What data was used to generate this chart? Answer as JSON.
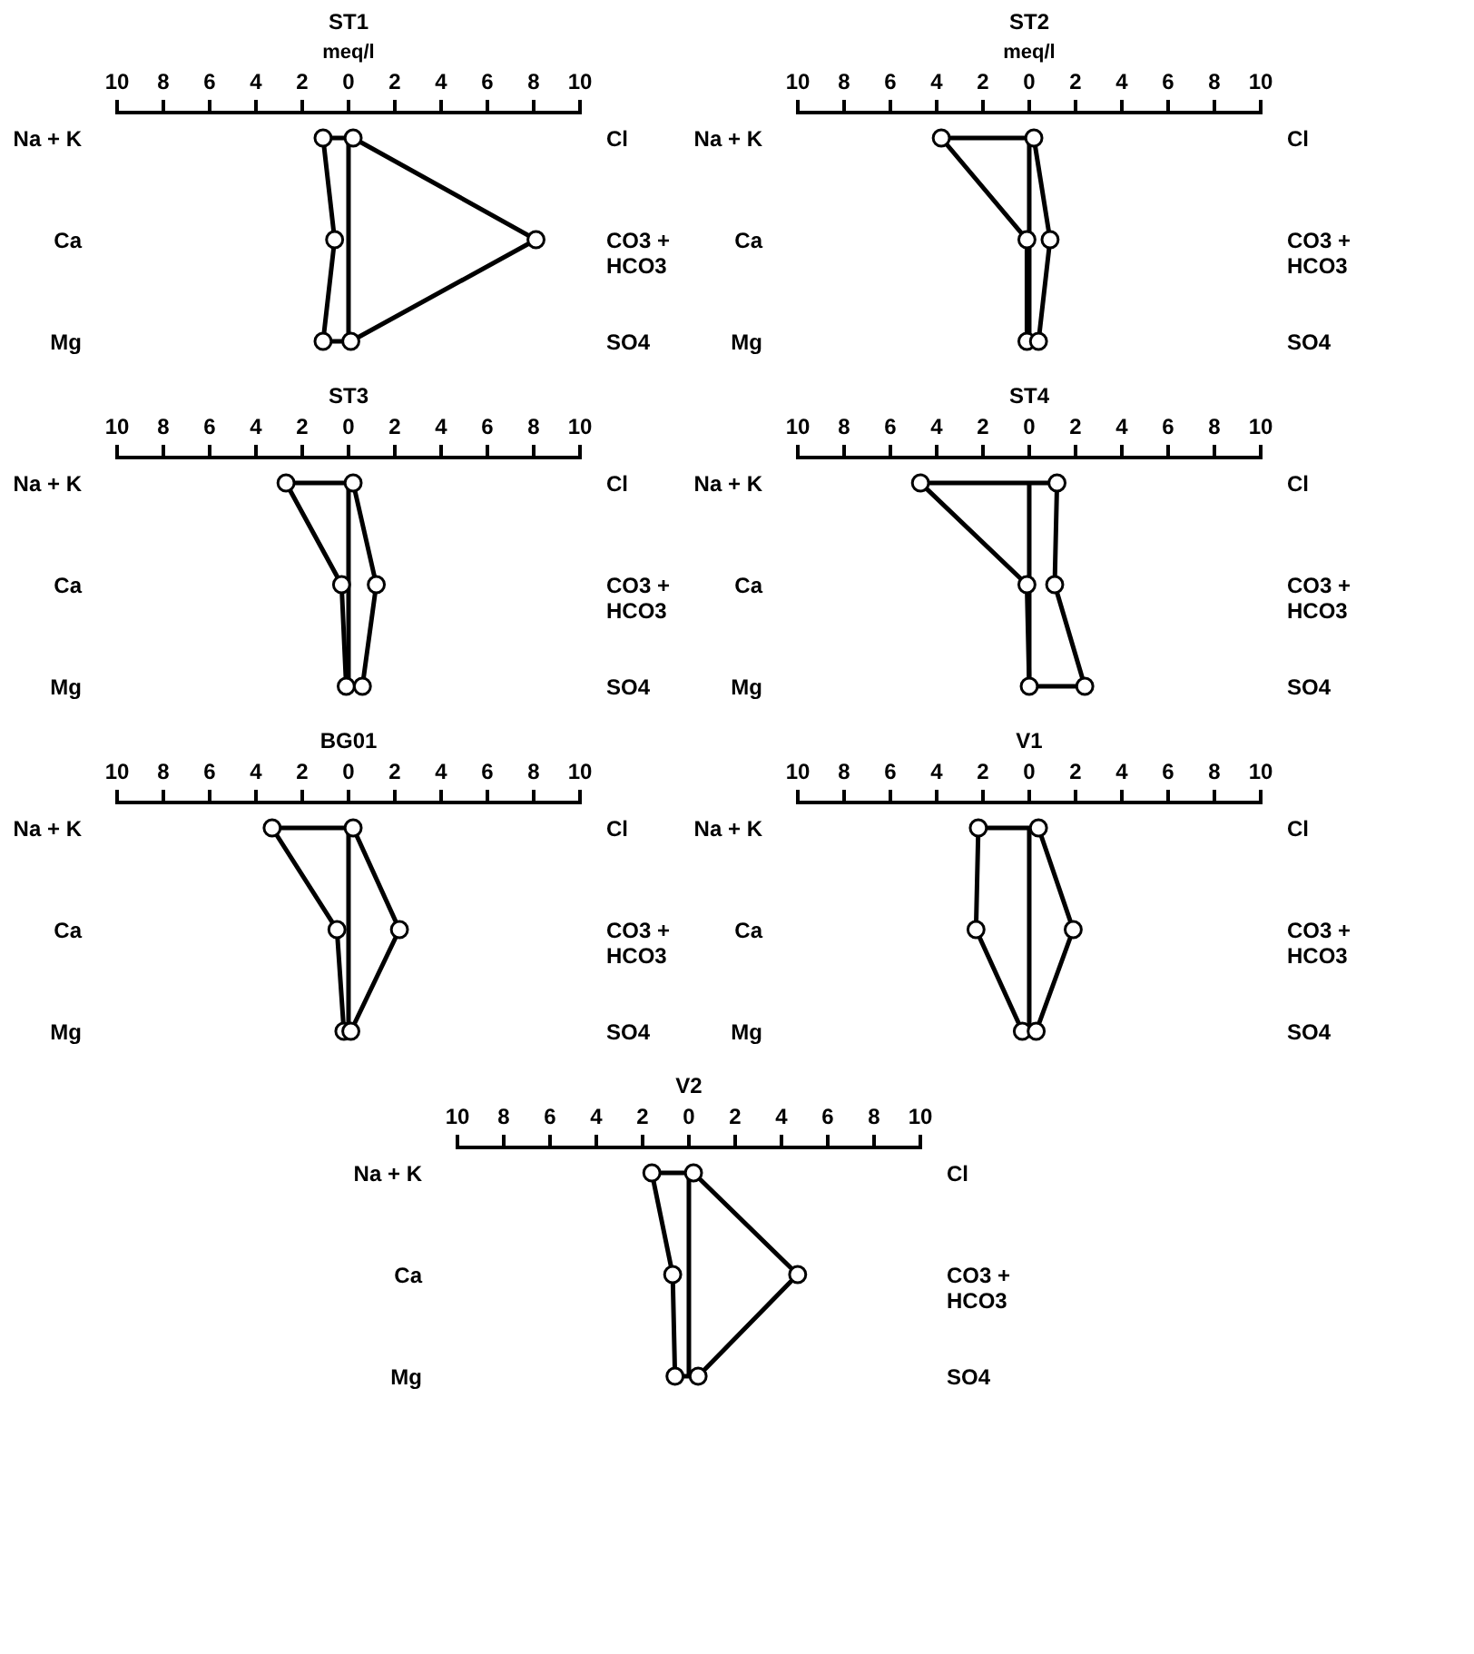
{
  "chart_data": [
    {
      "type": "line",
      "title": "ST1",
      "xlabel": "meq/l",
      "orientation": "horizontal",
      "grid": false,
      "marker": "circle",
      "line_style": "solid",
      "categories": [
        "Na + K",
        "Ca",
        "Mg"
      ],
      "y2_categories": [
        "Cl",
        "CO3 +\nHCO3",
        "SO4"
      ],
      "xlim": [
        -10,
        10
      ],
      "xticks": [
        {
          "value": -10,
          "label": "10"
        },
        {
          "value": -8,
          "label": "8"
        },
        {
          "value": -6,
          "label": "6"
        },
        {
          "value": -4,
          "label": "4"
        },
        {
          "value": -2,
          "label": "2"
        },
        0,
        2,
        4,
        6,
        8,
        10
      ],
      "ref_lines": [
        {
          "axis": "x",
          "value": 0
        }
      ],
      "series": [
        {
          "color": "#000000",
          "values": [
            -1.1,
            -0.6,
            -1.1
          ]
        },
        {
          "color": "#000000",
          "axis": "y2",
          "values": [
            0.2,
            8.1,
            0.1
          ]
        }
      ]
    },
    {
      "type": "line",
      "title": "ST2",
      "xlabel": "meq/l",
      "orientation": "horizontal",
      "grid": false,
      "marker": "circle",
      "line_style": "solid",
      "categories": [
        "Na + K",
        "Ca",
        "Mg"
      ],
      "y2_categories": [
        "Cl",
        "CO3 +\nHCO3",
        "SO4"
      ],
      "xlim": [
        -10,
        10
      ],
      "xticks": [
        {
          "value": -10,
          "label": "10"
        },
        {
          "value": -8,
          "label": "8"
        },
        {
          "value": -6,
          "label": "6"
        },
        {
          "value": -4,
          "label": "4"
        },
        {
          "value": -2,
          "label": "2"
        },
        0,
        2,
        4,
        6,
        8,
        10
      ],
      "ref_lines": [
        {
          "axis": "x",
          "value": 0
        }
      ],
      "series": [
        {
          "color": "#000000",
          "values": [
            -3.8,
            -0.1,
            -0.1
          ]
        },
        {
          "color": "#000000",
          "axis": "y2",
          "values": [
            0.2,
            0.9,
            0.4
          ]
        }
      ]
    },
    {
      "type": "line",
      "title": "ST3",
      "orientation": "horizontal",
      "grid": false,
      "marker": "circle",
      "line_style": "solid",
      "categories": [
        "Na + K",
        "Ca",
        "Mg"
      ],
      "y2_categories": [
        "Cl",
        "CO3 +\nHCO3",
        "SO4"
      ],
      "xlim": [
        -10,
        10
      ],
      "xticks": [
        {
          "value": -10,
          "label": "10"
        },
        {
          "value": -8,
          "label": "8"
        },
        {
          "value": -6,
          "label": "6"
        },
        {
          "value": -4,
          "label": "4"
        },
        {
          "value": -2,
          "label": "2"
        },
        0,
        2,
        4,
        6,
        8,
        10
      ],
      "ref_lines": [
        {
          "axis": "x",
          "value": 0
        }
      ],
      "series": [
        {
          "color": "#000000",
          "values": [
            -2.7,
            -0.3,
            -0.1
          ]
        },
        {
          "color": "#000000",
          "axis": "y2",
          "values": [
            0.2,
            1.2,
            0.6
          ]
        }
      ]
    },
    {
      "type": "line",
      "title": "ST4",
      "orientation": "horizontal",
      "grid": false,
      "marker": "circle",
      "line_style": "solid",
      "categories": [
        "Na + K",
        "Ca",
        "Mg"
      ],
      "y2_categories": [
        "Cl",
        "CO3 +\nHCO3",
        "SO4"
      ],
      "xlim": [
        -10,
        10
      ],
      "xticks": [
        {
          "value": -10,
          "label": "10"
        },
        {
          "value": -8,
          "label": "8"
        },
        {
          "value": -6,
          "label": "6"
        },
        {
          "value": -4,
          "label": "4"
        },
        {
          "value": -2,
          "label": "2"
        },
        0,
        2,
        4,
        6,
        8,
        10
      ],
      "ref_lines": [
        {
          "axis": "x",
          "value": 0
        }
      ],
      "series": [
        {
          "color": "#000000",
          "values": [
            -4.7,
            -0.1,
            0
          ]
        },
        {
          "color": "#000000",
          "axis": "y2",
          "values": [
            1.2,
            1.1,
            2.4
          ]
        }
      ]
    },
    {
      "type": "line",
      "title": "BG01",
      "orientation": "horizontal",
      "grid": false,
      "marker": "circle",
      "line_style": "solid",
      "categories": [
        "Na + K",
        "Ca",
        "Mg"
      ],
      "y2_categories": [
        "Cl",
        "CO3 +\nHCO3",
        "SO4"
      ],
      "xlim": [
        -10,
        10
      ],
      "xticks": [
        {
          "value": -10,
          "label": "10"
        },
        {
          "value": -8,
          "label": "8"
        },
        {
          "value": -6,
          "label": "6"
        },
        {
          "value": -4,
          "label": "4"
        },
        {
          "value": -2,
          "label": "2"
        },
        0,
        2,
        4,
        6,
        8,
        10
      ],
      "ref_lines": [
        {
          "axis": "x",
          "value": 0
        }
      ],
      "series": [
        {
          "color": "#000000",
          "values": [
            -3.3,
            -0.5,
            -0.2
          ]
        },
        {
          "color": "#000000",
          "axis": "y2",
          "values": [
            0.2,
            2.2,
            0.1
          ]
        }
      ]
    },
    {
      "type": "line",
      "title": "V1",
      "orientation": "horizontal",
      "grid": false,
      "marker": "circle",
      "line_style": "solid",
      "categories": [
        "Na + K",
        "Ca",
        "Mg"
      ],
      "y2_categories": [
        "Cl",
        "CO3 +\nHCO3",
        "SO4"
      ],
      "xlim": [
        -10,
        10
      ],
      "xticks": [
        {
          "value": -10,
          "label": "10"
        },
        {
          "value": -8,
          "label": "8"
        },
        {
          "value": -6,
          "label": "6"
        },
        {
          "value": -4,
          "label": "4"
        },
        {
          "value": -2,
          "label": "2"
        },
        0,
        2,
        4,
        6,
        8,
        10
      ],
      "ref_lines": [
        {
          "axis": "x",
          "value": 0
        }
      ],
      "series": [
        {
          "color": "#000000",
          "values": [
            -2.2,
            -2.3,
            -0.3
          ]
        },
        {
          "color": "#000000",
          "axis": "y2",
          "values": [
            0.4,
            1.9,
            0.3
          ]
        }
      ]
    },
    {
      "type": "line",
      "title": "V2",
      "orientation": "horizontal",
      "grid": false,
      "marker": "circle",
      "line_style": "solid",
      "categories": [
        "Na + K",
        "Ca",
        "Mg"
      ],
      "y2_categories": [
        "Cl",
        "CO3 +\nHCO3",
        "SO4"
      ],
      "xlim": [
        -10,
        10
      ],
      "xticks": [
        {
          "value": -10,
          "label": "10"
        },
        {
          "value": -8,
          "label": "8"
        },
        {
          "value": -6,
          "label": "6"
        },
        {
          "value": -4,
          "label": "4"
        },
        {
          "value": -2,
          "label": "2"
        },
        0,
        2,
        4,
        6,
        8,
        10
      ],
      "ref_lines": [
        {
          "axis": "x",
          "value": 0
        }
      ],
      "series": [
        {
          "color": "#000000",
          "values": [
            -1.6,
            -0.7,
            -0.6
          ]
        },
        {
          "color": "#000000",
          "axis": "y2",
          "values": [
            0.2,
            4.7,
            0.4
          ]
        }
      ]
    }
  ]
}
